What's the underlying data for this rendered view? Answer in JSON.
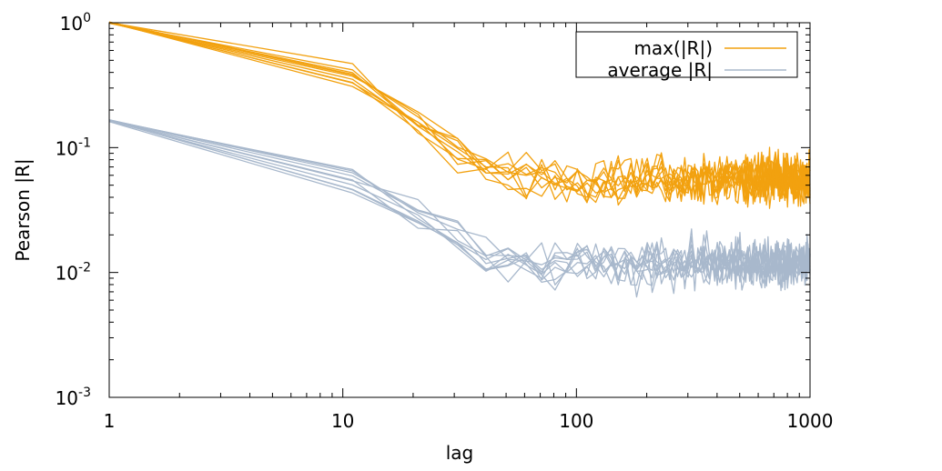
{
  "chart_data": {
    "type": "line",
    "xscale": "log",
    "yscale": "log",
    "xlabel": "lag",
    "ylabel": "Pearson |R|",
    "xlim": [
      1,
      1000
    ],
    "ylim": [
      0.001,
      1
    ],
    "x_ticks": [
      {
        "value": 1,
        "label": "1"
      },
      {
        "value": 10,
        "label": "10"
      },
      {
        "value": 100,
        "label": "100"
      },
      {
        "value": 1000,
        "label": "1000"
      }
    ],
    "y_ticks": [
      {
        "value": 0.001,
        "base": "10",
        "exp": "-3"
      },
      {
        "value": 0.01,
        "base": "10",
        "exp": "-2"
      },
      {
        "value": 0.1,
        "base": "10",
        "exp": "-1"
      },
      {
        "value": 1,
        "base": "10",
        "exp": "0"
      }
    ],
    "grid": false,
    "legend_position": "top-right",
    "legend": [
      {
        "label": "max(|R|)",
        "color": "#f2a10f"
      },
      {
        "label": "average |R|",
        "color": "#a8b8cc"
      }
    ],
    "series_groups": [
      {
        "legend": "max(|R|)",
        "color": "#f2a10f",
        "count": 10,
        "profile": {
          "x": [
            1,
            11,
            21,
            31,
            41,
            51,
            61,
            71,
            81,
            91,
            101,
            200,
            400,
            700,
            1000
          ],
          "y": [
            1.0,
            0.33,
            0.15,
            0.085,
            0.065,
            0.057,
            0.055,
            0.054,
            0.053,
            0.053,
            0.052,
            0.052,
            0.053,
            0.054,
            0.054
          ]
        }
      },
      {
        "legend": "average |R|",
        "color": "#a8b8cc",
        "count": 10,
        "profile": {
          "x": [
            1,
            11,
            21,
            31,
            41,
            51,
            61,
            71,
            81,
            91,
            101,
            200,
            400,
            700,
            1000
          ],
          "y": [
            0.165,
            0.056,
            0.03,
            0.019,
            0.013,
            0.0125,
            0.0123,
            0.012,
            0.012,
            0.012,
            0.0118,
            0.0118,
            0.012,
            0.0121,
            0.0122
          ]
        }
      }
    ]
  }
}
